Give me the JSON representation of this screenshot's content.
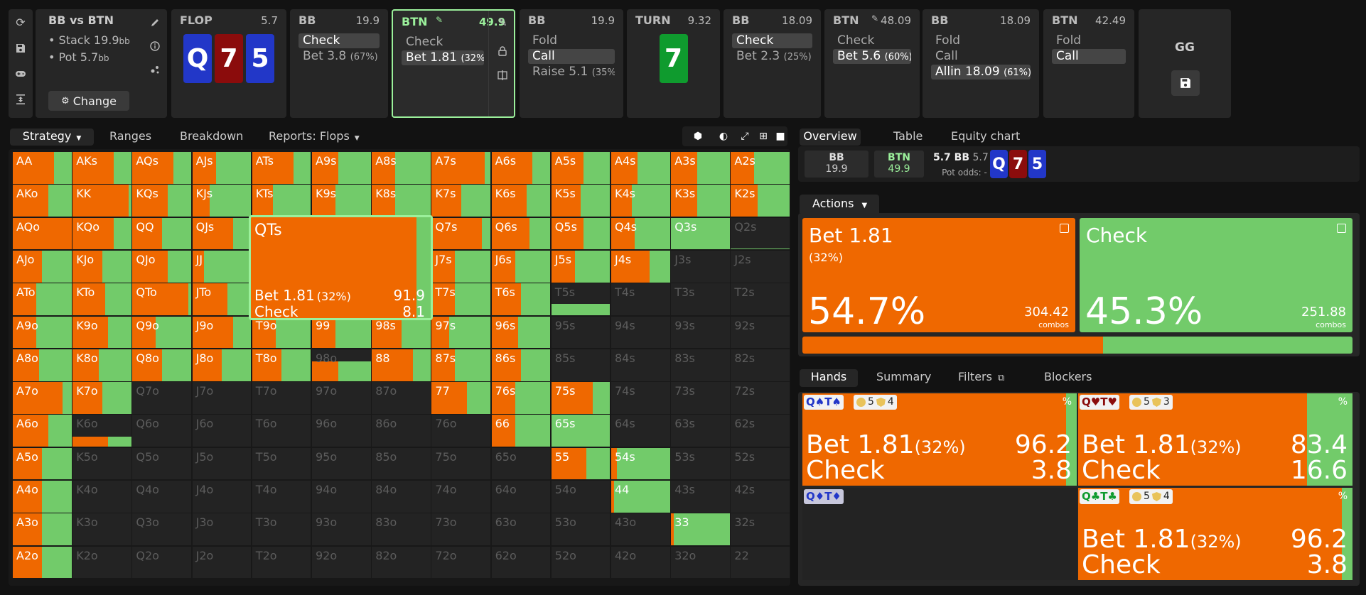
{
  "colors": {
    "bet": "#ef6800",
    "check": "#72cb6a",
    "clubs": "#0f9b2e",
    "diamonds": "#2237c8",
    "hearts": "#8b0c0c",
    "spades": "#2237c8",
    "highlight": "#9bf09b"
  },
  "sidebar_icons": [
    "refresh-icon",
    "save-icon",
    "gamepad-icon",
    "collapse-icon"
  ],
  "header": {
    "summary": {
      "title": "BB vs BTN",
      "stack_label": "Stack 19.9",
      "stack_unit": "bb",
      "pot_label": "Pot 5.7",
      "pot_unit": "bb",
      "change_button": "Change"
    },
    "streets": [
      {
        "type": "board",
        "label": "FLOP",
        "value": "5.7",
        "cards": [
          {
            "rank": "Q",
            "suit": "spades"
          },
          {
            "rank": "7",
            "suit": "hearts"
          },
          {
            "rank": "5",
            "suit": "diamonds"
          }
        ]
      },
      {
        "type": "action",
        "player": "BB",
        "value": "19.9",
        "actions": [
          {
            "label": "Check",
            "pct": "",
            "selected": true
          },
          {
            "label": "Bet 3.8",
            "pct": "(67%)",
            "selected": false
          }
        ]
      },
      {
        "type": "action",
        "player": "BTN",
        "value": "49.9",
        "active": true,
        "actions": [
          {
            "label": "Check",
            "pct": "",
            "selected": false
          },
          {
            "label": "Bet 1.81",
            "pct": "(32%)",
            "selected": true
          }
        ]
      },
      {
        "type": "action",
        "player": "BB",
        "value": "19.9",
        "actions": [
          {
            "label": "Fold",
            "pct": "",
            "selected": false
          },
          {
            "label": "Call",
            "pct": "",
            "selected": true
          },
          {
            "label": "Raise 5.1",
            "pct": "(35%)",
            "selected": false
          }
        ]
      },
      {
        "type": "board",
        "label": "TURN",
        "value": "9.32",
        "cards": [
          {
            "rank": "7",
            "suit": "clubs"
          }
        ]
      },
      {
        "type": "action",
        "player": "BB",
        "value": "18.09",
        "actions": [
          {
            "label": "Check",
            "pct": "",
            "selected": true
          },
          {
            "label": "Bet 2.3",
            "pct": "(25%)",
            "selected": false
          }
        ]
      },
      {
        "type": "action",
        "player": "BTN",
        "value": "48.09",
        "edited": true,
        "actions": [
          {
            "label": "Check",
            "pct": "",
            "selected": false
          },
          {
            "label": "Bet 5.6",
            "pct": "(60%)",
            "selected": true
          }
        ]
      },
      {
        "type": "action",
        "player": "BB",
        "value": "18.09",
        "actions": [
          {
            "label": "Fold",
            "pct": "",
            "selected": false
          },
          {
            "label": "Call",
            "pct": "",
            "selected": false
          },
          {
            "label": "Allin 18.09",
            "pct": "(61%)",
            "selected": true
          }
        ]
      },
      {
        "type": "action",
        "player": "BTN",
        "value": "42.49",
        "actions": [
          {
            "label": "Fold",
            "pct": "",
            "selected": false
          },
          {
            "label": "Call",
            "pct": "",
            "selected": true
          }
        ]
      }
    ],
    "gg": {
      "label": "GG"
    }
  },
  "left": {
    "tabs": [
      "Strategy",
      "Ranges",
      "Breakdown",
      "Reports: Flops"
    ],
    "toolbar_icons": [
      "cube-icon",
      "contrast-icon",
      "compress-icon",
      "grid-icon",
      "square-icon"
    ],
    "matrix": [
      [
        "AA:70",
        "AKs:70",
        "AQs:70",
        "AJs:40",
        "ATs:70",
        "A9s:45",
        "A8s:40",
        "A7s:90",
        "A6s:70",
        "A5s:55",
        "A4s:45",
        "A3s:45",
        "A2s:40"
      ],
      [
        "AKo:60",
        "KK:95",
        "KQs:60",
        "KJs:30",
        "KTs:35",
        "K9s:40",
        "K8s:40",
        "K7s:50",
        "K6s:60",
        "K5s:50",
        "K4s:35",
        "K3s:45",
        "K2s:45"
      ],
      [
        "AQo:100",
        "KQo:70",
        "QQ:50",
        "QJs:70",
        "QTs:92",
        "Q9s:55",
        "Q8s:45",
        "Q7s:85",
        "Q6s:65",
        "Q5s:55",
        "Q4s:40",
        "Q3s:0",
        "Q2s:n"
      ],
      [
        "AJo:50",
        "KJo:50",
        "QJo:60",
        "JJ:20",
        "JTs:30",
        "J9s:50",
        "J8s:40",
        "J7s:40",
        "J6s:40",
        "J5s:40",
        "J4s:65",
        "J3s:n",
        "J2s:n"
      ],
      [
        "ATo:40",
        "KTo:55",
        "QTo:95",
        "JTo:60",
        "TT:30",
        "T9s:40",
        "T8s:40",
        "T7s:40",
        "T6s:50",
        "T5s:n",
        "T4s:n",
        "T3s:n",
        "T2s:n"
      ],
      [
        "A9o:40",
        "K9o:60",
        "Q9o:40",
        "J9o:70",
        "T9o:40",
        "99:40",
        "98s:50",
        "97s:30",
        "96s:45",
        "95s:n",
        "94s:n",
        "93s:n",
        "92s:n"
      ],
      [
        "A8o:45",
        "K8o:45",
        "Q8o:50",
        "J8o:50",
        "T8o:50",
        "98o:n",
        "88:70",
        "87s:40",
        "86s:50",
        "85s:n",
        "84s:n",
        "83s:n",
        "82s:n"
      ],
      [
        "A7o:85",
        "K7o:50",
        "Q7o:n",
        "J7o:n",
        "T7o:n",
        "97o:n",
        "87o:n",
        "77:60",
        "76s:40",
        "75s:70",
        "74s:n",
        "73s:n",
        "72s:n"
      ],
      [
        "A6o:60",
        "K6o:n",
        "Q6o:n",
        "J6o:n",
        "T6o:n",
        "96o:n",
        "86o:n",
        "76o:n",
        "66:40",
        "65s:0",
        "64s:n",
        "63s:n",
        "62s:n"
      ],
      [
        "A5o:50",
        "K5o:n",
        "Q5o:n",
        "J5o:n",
        "T5o:n",
        "95o:n",
        "85o:n",
        "75o:n",
        "65o:n",
        "55:60",
        "54s:10",
        "53s:n",
        "52s:n"
      ],
      [
        "A4o:50",
        "K4o:n",
        "Q4o:n",
        "J4o:n",
        "T4o:n",
        "94o:n",
        "84o:n",
        "74o:n",
        "64o:n",
        "54o:n",
        "44:5",
        "43s:n",
        "42s:n"
      ],
      [
        "A3o:50",
        "K3o:n",
        "Q3o:n",
        "J3o:n",
        "T3o:n",
        "93o:n",
        "83o:n",
        "73o:n",
        "63o:n",
        "53o:n",
        "43o:n",
        "33:5",
        "32s:n"
      ],
      [
        "A2o:50",
        "K2o:n",
        "Q2o:n",
        "J2o:n",
        "T2o:n",
        "92o:n",
        "82o:n",
        "72o:n",
        "62o:n",
        "52o:n",
        "42o:n",
        "32o:n",
        "22:n"
      ]
    ],
    "tooltip": {
      "title": "QTs",
      "bet_label": "Bet 1.81",
      "bet_pct": "(32%)",
      "bet_value": "91.9",
      "check_label": "Check",
      "check_value": "8.1"
    }
  },
  "right": {
    "tabs": [
      "Overview",
      "Table",
      "Equity chart"
    ],
    "overview": {
      "p1": "BB",
      "p1_stack": "19.9",
      "p2": "BTN",
      "p2_stack": "49.9",
      "pot": "5.7 BB",
      "pot_alt": "5.7 BB",
      "pot_odds_label": "Pot odds:",
      "pot_odds_value": "-",
      "board": [
        {
          "rank": "Q",
          "suit": "spades"
        },
        {
          "rank": "7",
          "suit": "hearts"
        },
        {
          "rank": "5",
          "suit": "diamonds"
        }
      ]
    },
    "actions_dropdown": "Actions",
    "summary": [
      {
        "name": "Bet 1.81",
        "sub": "(32%)",
        "pct": "54.7%",
        "combos": "304.42",
        "combos_label": "combos",
        "kind": "bet"
      },
      {
        "name": "Check",
        "sub": "",
        "pct": "45.3%",
        "combos": "251.88",
        "combos_label": "combos",
        "kind": "check"
      }
    ],
    "mix_bar": {
      "bet_fraction": 0.547
    },
    "hand_tabs": [
      "Hands",
      "Summary",
      "Filters",
      "Blockers"
    ],
    "hands": [
      {
        "cards": "Q♠T♠",
        "suit": "spades",
        "b1": "5",
        "b2": "4",
        "pct_symbol": "%",
        "bet_label": "Bet 1.81",
        "bet_pct": "(32%)",
        "bet_value": "96.2",
        "check_label": "Check",
        "check_value": "3.8",
        "bet_fraction": 0.962
      },
      {
        "cards": "Q♥T♥",
        "suit": "hearts",
        "b1": "5",
        "b2": "3",
        "pct_symbol": "%",
        "bet_label": "Bet 1.81",
        "bet_pct": "(32%)",
        "bet_value": "83.4",
        "check_label": "Check",
        "check_value": "16.6",
        "bet_fraction": 0.834
      },
      {
        "cards": "Q♦T♦",
        "suit": "diamonds",
        "empty": true
      },
      {
        "cards": "Q♣T♣",
        "suit": "clubs",
        "b1": "5",
        "b2": "4",
        "pct_symbol": "%",
        "bet_label": "Bet 1.81",
        "bet_pct": "(32%)",
        "bet_value": "96.2",
        "check_label": "Check",
        "check_value": "3.8",
        "bet_fraction": 0.962
      }
    ]
  }
}
